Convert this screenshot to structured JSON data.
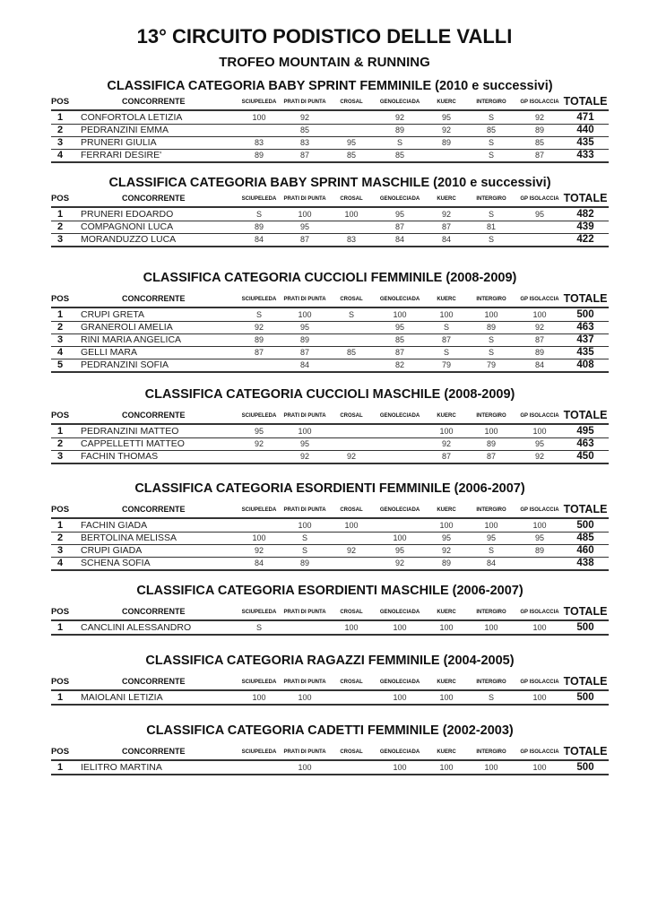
{
  "title": "13° CIRCUITO PODISTICO DELLE VALLI",
  "subtitle": "TROFEO MOUNTAIN & RUNNING",
  "columns": {
    "pos": "POS",
    "name": "CONCORRENTE",
    "races": [
      "SCIUPELEDA",
      "PRATI DI PUNTA",
      "CROSAL",
      "GENOLECIADA",
      "KUERC",
      "INTERGIRO",
      "GP ISOLACCIA"
    ],
    "total": "TOTALE"
  },
  "sections": [
    {
      "title": "CLASSIFICA CATEGORIA BABY SPRINT FEMMINILE (2010 e successivi)",
      "rows": [
        {
          "pos": "1",
          "name": "CONFORTOLA LETIZIA",
          "scores": [
            "100",
            "92",
            "",
            "92",
            "95",
            "S",
            "92"
          ],
          "total": "471"
        },
        {
          "pos": "2",
          "name": "PEDRANZINI EMMA",
          "scores": [
            "",
            "85",
            "",
            "89",
            "92",
            "85",
            "89"
          ],
          "total": "440"
        },
        {
          "pos": "3",
          "name": "PRUNERI GIULIA",
          "scores": [
            "83",
            "83",
            "95",
            "S",
            "89",
            "S",
            "85"
          ],
          "total": "435"
        },
        {
          "pos": "4",
          "name": "FERRARI DESIRE'",
          "scores": [
            "89",
            "87",
            "85",
            "85",
            "",
            "S",
            "87"
          ],
          "total": "433"
        }
      ]
    },
    {
      "title": "CLASSIFICA CATEGORIA BABY SPRINT MASCHILE (2010 e successivi)",
      "rows": [
        {
          "pos": "1",
          "name": "PRUNERI EDOARDO",
          "scores": [
            "S",
            "100",
            "100",
            "95",
            "92",
            "S",
            "95"
          ],
          "total": "482"
        },
        {
          "pos": "2",
          "name": "COMPAGNONI LUCA",
          "scores": [
            "89",
            "95",
            "",
            "87",
            "87",
            "81",
            ""
          ],
          "total": "439"
        },
        {
          "pos": "3",
          "name": "MORANDUZZO LUCA",
          "scores": [
            "84",
            "87",
            "83",
            "84",
            "84",
            "S",
            ""
          ],
          "total": "422"
        }
      ]
    },
    {
      "title": "CLASSIFICA CATEGORIA CUCCIOLI FEMMINILE (2008-2009)",
      "rows": [
        {
          "pos": "1",
          "name": "CRUPI GRETA",
          "scores": [
            "S",
            "100",
            "S",
            "100",
            "100",
            "100",
            "100"
          ],
          "total": "500"
        },
        {
          "pos": "2",
          "name": "GRANEROLI AMELIA",
          "scores": [
            "92",
            "95",
            "",
            "95",
            "S",
            "89",
            "92"
          ],
          "total": "463"
        },
        {
          "pos": "3",
          "name": "RINI MARIA ANGELICA",
          "scores": [
            "89",
            "89",
            "",
            "85",
            "87",
            "S",
            "87"
          ],
          "total": "437"
        },
        {
          "pos": "4",
          "name": "GELLI MARA",
          "scores": [
            "87",
            "87",
            "85",
            "87",
            "S",
            "S",
            "89"
          ],
          "total": "435"
        },
        {
          "pos": "5",
          "name": "PEDRANZINI SOFIA",
          "scores": [
            "",
            "84",
            "",
            "82",
            "79",
            "79",
            "84"
          ],
          "total": "408"
        }
      ]
    },
    {
      "title": "CLASSIFICA CATEGORIA CUCCIOLI MASCHILE (2008-2009)",
      "rows": [
        {
          "pos": "1",
          "name": "PEDRANZINI MATTEO",
          "scores": [
            "95",
            "100",
            "",
            "",
            "100",
            "100",
            "100"
          ],
          "total": "495"
        },
        {
          "pos": "2",
          "name": "CAPPELLETTI MATTEO",
          "scores": [
            "92",
            "95",
            "",
            "",
            "92",
            "89",
            "95"
          ],
          "total": "463"
        },
        {
          "pos": "3",
          "name": "FACHIN THOMAS",
          "scores": [
            "",
            "92",
            "92",
            "",
            "87",
            "87",
            "92"
          ],
          "total": "450"
        }
      ]
    },
    {
      "title": "CLASSIFICA CATEGORIA ESORDIENTI FEMMINILE (2006-2007)",
      "rows": [
        {
          "pos": "1",
          "name": "FACHIN GIADA",
          "scores": [
            "",
            "100",
            "100",
            "",
            "100",
            "100",
            "100"
          ],
          "total": "500"
        },
        {
          "pos": "2",
          "name": "BERTOLINA MELISSA",
          "scores": [
            "100",
            "S",
            "",
            "100",
            "95",
            "95",
            "95"
          ],
          "total": "485"
        },
        {
          "pos": "3",
          "name": "CRUPI GIADA",
          "scores": [
            "92",
            "S",
            "92",
            "95",
            "92",
            "S",
            "89"
          ],
          "total": "460"
        },
        {
          "pos": "4",
          "name": "SCHENA SOFIA",
          "scores": [
            "84",
            "89",
            "",
            "92",
            "89",
            "84",
            ""
          ],
          "total": "438"
        }
      ]
    },
    {
      "title": "CLASSIFICA CATEGORIA ESORDIENTI MASCHILE (2006-2007)",
      "rows": [
        {
          "pos": "1",
          "name": "CANCLINI ALESSANDRO",
          "scores": [
            "S",
            "",
            "100",
            "100",
            "100",
            "100",
            "100"
          ],
          "total": "500"
        }
      ]
    },
    {
      "title": "CLASSIFICA CATEGORIA RAGAZZI FEMMINILE (2004-2005)",
      "rows": [
        {
          "pos": "1",
          "name": "MAIOLANI LETIZIA",
          "scores": [
            "100",
            "100",
            "",
            "100",
            "100",
            "S",
            "100"
          ],
          "total": "500"
        }
      ]
    },
    {
      "title": "CLASSIFICA CATEGORIA CADETTI FEMMINILE (2002-2003)",
      "rows": [
        {
          "pos": "1",
          "name": "IELITRO MARTINA",
          "scores": [
            "",
            "100",
            "",
            "100",
            "100",
            "100",
            "100"
          ],
          "total": "500"
        }
      ]
    }
  ]
}
